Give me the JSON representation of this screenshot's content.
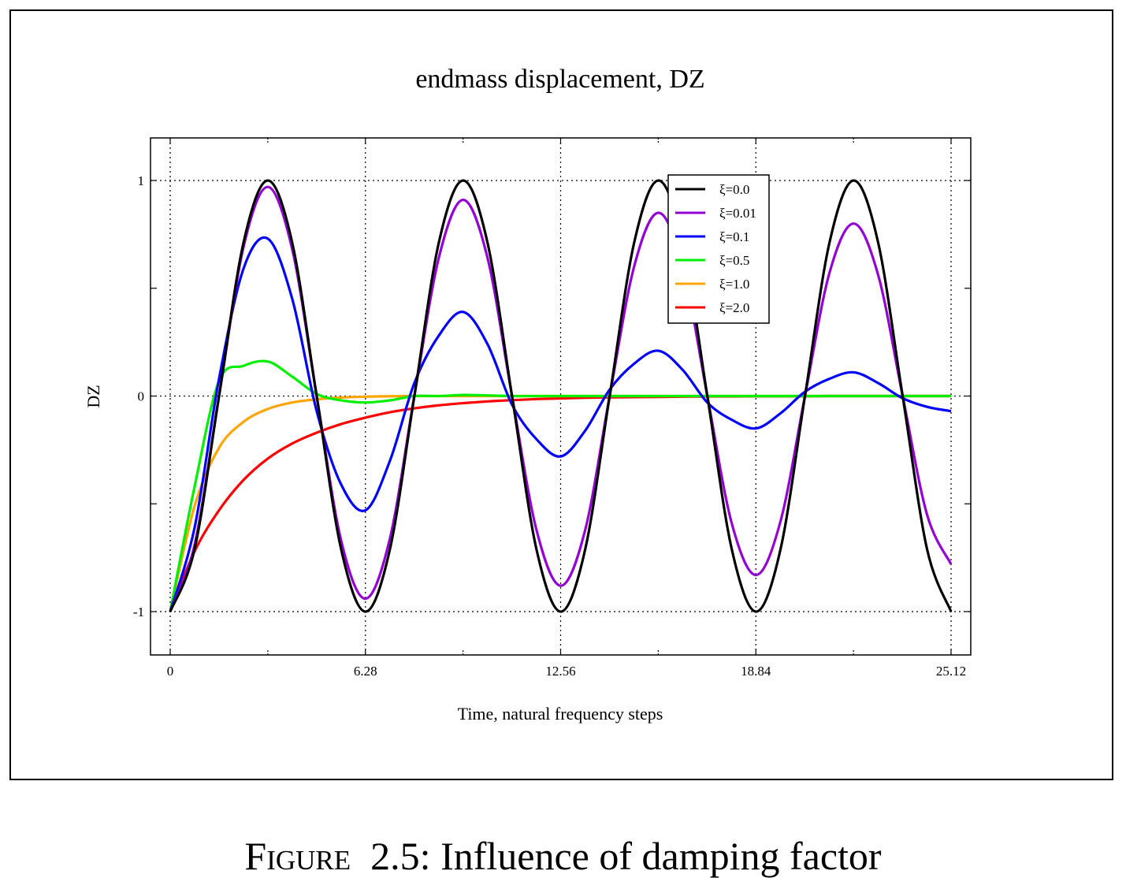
{
  "figure": {
    "caption_label": "Figure",
    "caption_number": "2.5:",
    "caption_text": "Influence of damping factor"
  },
  "chart_data": {
    "type": "line",
    "title": "endmass displacement, DZ",
    "xlabel": "Time, natural frequency steps",
    "ylabel": "DZ",
    "xlim": [
      0,
      25.12
    ],
    "ylim": [
      -1.2,
      1.2
    ],
    "x_ticks": [
      {
        "value": 0,
        "label": "0"
      },
      {
        "value": 6.28,
        "label": "6.28"
      },
      {
        "value": 12.56,
        "label": "12.56"
      },
      {
        "value": 18.84,
        "label": "18.84"
      },
      {
        "value": 25.12,
        "label": "25.12"
      }
    ],
    "x_minor_ticks": [
      3.14,
      9.42,
      15.7,
      21.98
    ],
    "y_ticks": [
      {
        "value": 1,
        "label": "1"
      },
      {
        "value": 0,
        "label": "0"
      },
      {
        "value": -1,
        "label": "-1"
      }
    ],
    "y_minor_ticks": [
      0.5,
      -0.5
    ],
    "grid": true,
    "legend_position": "top-right",
    "x": [
      0,
      0.785,
      1.571,
      2.356,
      3.142,
      3.927,
      4.712,
      5.498,
      6.283,
      7.069,
      7.854,
      8.639,
      9.425,
      10.21,
      10.996,
      11.781,
      12.566,
      13.352,
      14.137,
      14.923,
      15.708,
      16.493,
      17.279,
      18.064,
      18.85,
      19.635,
      20.42,
      21.206,
      21.991,
      22.777,
      23.562,
      24.347,
      25.12
    ],
    "series": [
      {
        "name": "ξ=0.0",
        "color": "#000000",
        "values": [
          -1.0,
          -0.71,
          0.0,
          0.71,
          1.0,
          0.71,
          0.0,
          -0.71,
          -1.0,
          -0.71,
          0.0,
          0.71,
          1.0,
          0.71,
          0.0,
          -0.71,
          -1.0,
          -0.71,
          0.0,
          0.71,
          1.0,
          0.71,
          0.0,
          -0.71,
          -1.0,
          -0.71,
          0.0,
          0.71,
          1.0,
          0.71,
          0.0,
          -0.71,
          -1.0
        ]
      },
      {
        "name": "ξ=0.01",
        "color": "#9400d3",
        "values": [
          -1.0,
          -0.69,
          0.0,
          0.69,
          0.97,
          0.68,
          0.0,
          -0.67,
          -0.94,
          -0.66,
          0.0,
          0.64,
          0.91,
          0.64,
          0.0,
          -0.62,
          -0.88,
          -0.62,
          0.0,
          0.6,
          0.85,
          0.6,
          0.0,
          -0.59,
          -0.83,
          -0.58,
          0.0,
          0.57,
          0.8,
          0.56,
          0.0,
          -0.55,
          -0.78
        ]
      },
      {
        "name": "ξ=0.1",
        "color": "#0000ff",
        "values": [
          -1.0,
          -0.61,
          0.08,
          0.59,
          0.73,
          0.45,
          -0.07,
          -0.41,
          -0.53,
          -0.3,
          0.06,
          0.28,
          0.39,
          0.24,
          -0.04,
          -0.2,
          -0.28,
          -0.16,
          0.03,
          0.15,
          0.21,
          0.12,
          -0.03,
          -0.11,
          -0.15,
          -0.08,
          0.02,
          0.08,
          0.11,
          0.06,
          -0.01,
          -0.05,
          -0.07
        ]
      },
      {
        "name": "ξ=0.5",
        "color": "#00ee00",
        "values": [
          -1.0,
          -0.42,
          0.07,
          0.14,
          0.16,
          0.09,
          0.01,
          -0.02,
          -0.03,
          -0.02,
          0.0,
          0.0,
          0.005,
          0.003,
          0.0,
          0.0,
          0.0,
          0.0,
          0.0,
          0.0,
          0.0,
          0.0,
          0.0,
          0.0,
          0.0,
          0.0,
          0.0,
          0.0,
          0.0,
          0.0,
          0.0,
          0.0,
          0.0
        ]
      },
      {
        "name": "ξ=1.0",
        "color": "#ffa500",
        "values": [
          -1.0,
          -0.51,
          -0.24,
          -0.12,
          -0.06,
          -0.03,
          -0.015,
          -0.007,
          -0.003,
          -0.001,
          0.0,
          0.0,
          0.0,
          0.0,
          0.0,
          0.0,
          0.0,
          0.0,
          0.0,
          0.0,
          0.0,
          0.0,
          0.0,
          0.0,
          0.0,
          0.0,
          0.0,
          0.0,
          0.0,
          0.0,
          0.0,
          0.0,
          0.0
        ]
      },
      {
        "name": "ξ=2.0",
        "color": "#ff0000",
        "values": [
          -1.0,
          -0.72,
          -0.53,
          -0.39,
          -0.29,
          -0.22,
          -0.17,
          -0.13,
          -0.1,
          -0.075,
          -0.057,
          -0.043,
          -0.033,
          -0.025,
          -0.019,
          -0.014,
          -0.011,
          -0.008,
          -0.006,
          -0.005,
          -0.004,
          -0.003,
          -0.002,
          -0.002,
          -0.001,
          -0.001,
          -0.001,
          0.0,
          0.0,
          0.0,
          0.0,
          0.0,
          0.0
        ]
      }
    ]
  }
}
